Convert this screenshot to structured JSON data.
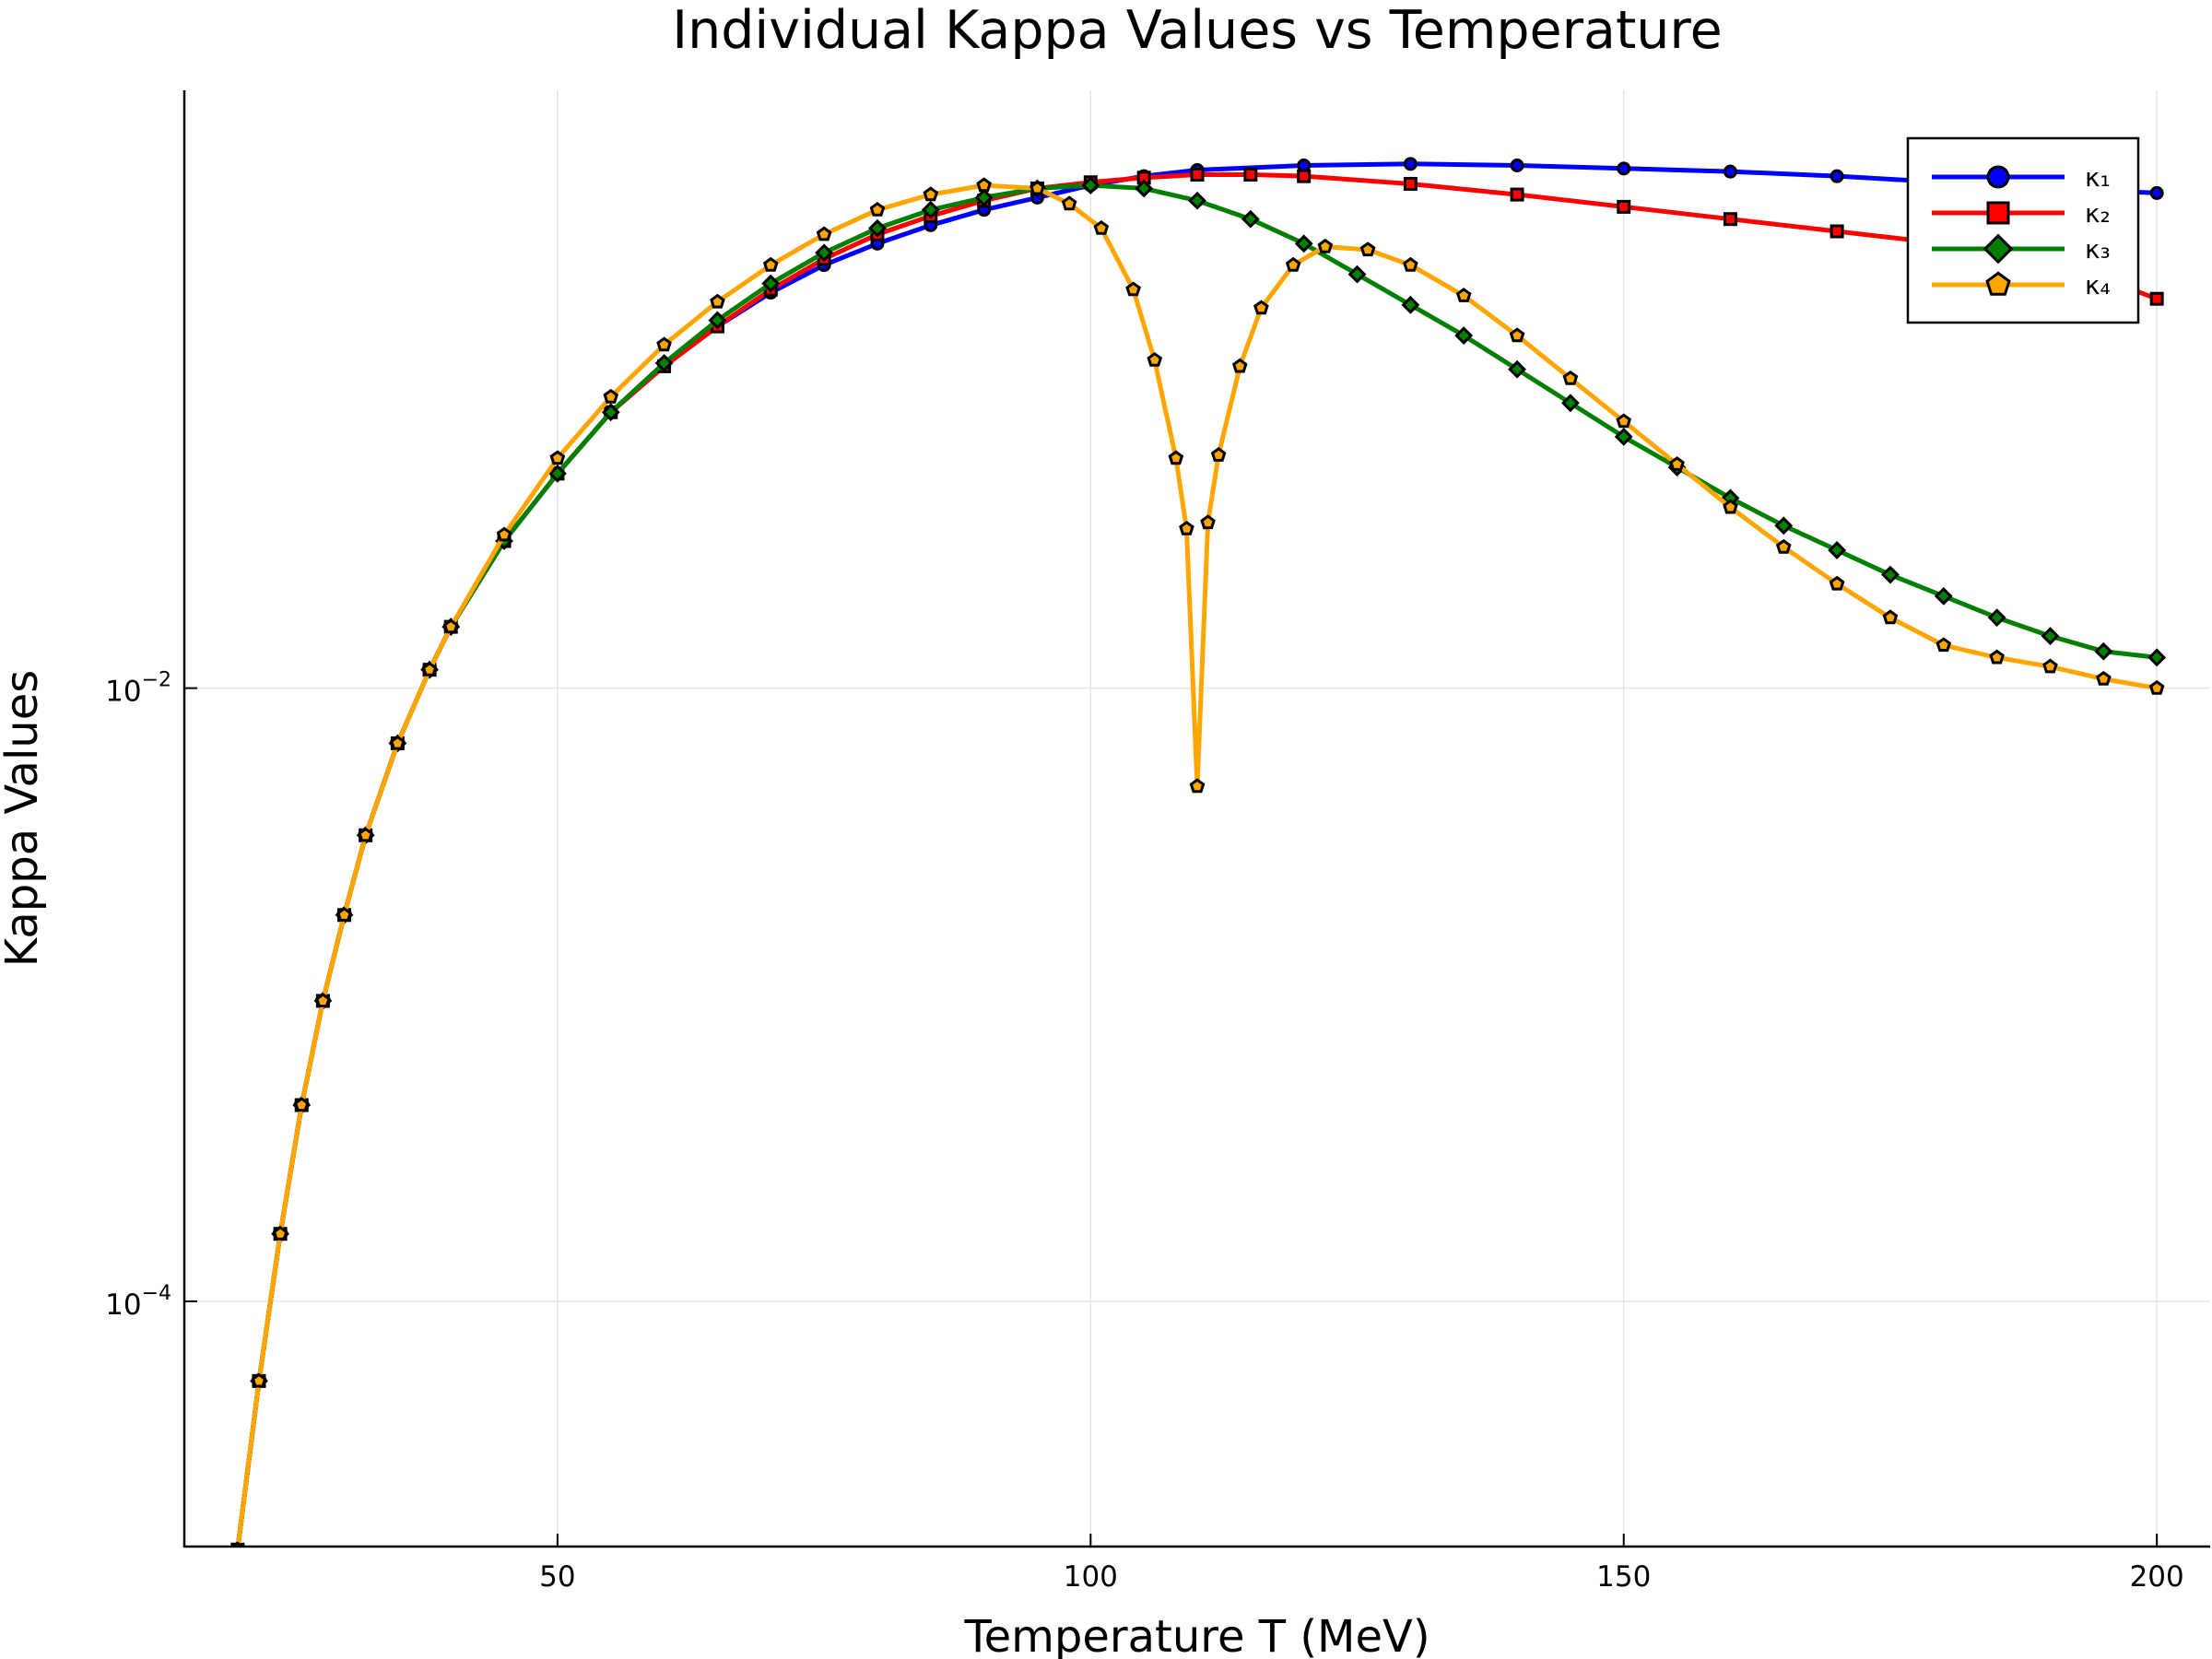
{
  "chart_data": {
    "type": "line",
    "title": "Individual Kappa Values vs Temperature",
    "xlabel": "Temperature T (MeV)",
    "ylabel": "Kappa Values",
    "xlim": [
      15,
      205
    ],
    "ylim_log10": [
      -4.8,
      -0.05
    ],
    "y_scale": "log",
    "grid": true,
    "legend_position": "top-right",
    "x_ticks": [
      50,
      100,
      150,
      200
    ],
    "y_ticks": [
      {
        "base": "10",
        "exponent": "−2",
        "log10": -2
      },
      {
        "base": "10",
        "exponent": "−4",
        "log10": -4
      }
    ],
    "series": [
      {
        "name": "κ₁",
        "color": "#0000ff",
        "marker": "circle",
        "points": [
          [
            20,
            -4.81
          ],
          [
            22,
            -4.26
          ],
          [
            24,
            -3.78
          ],
          [
            26,
            -3.36
          ],
          [
            28,
            -3.02
          ],
          [
            30,
            -2.74
          ],
          [
            32,
            -2.48
          ],
          [
            35,
            -2.18
          ],
          [
            38,
            -1.94
          ],
          [
            40,
            -1.8
          ],
          [
            45,
            -1.52
          ],
          [
            50,
            -1.3
          ],
          [
            55,
            -1.1
          ],
          [
            60,
            -0.95
          ],
          [
            65,
            -0.82
          ],
          [
            70,
            -0.71
          ],
          [
            75,
            -0.62
          ],
          [
            80,
            -0.55
          ],
          [
            85,
            -0.49
          ],
          [
            90,
            -0.44
          ],
          [
            95,
            -0.4
          ],
          [
            100,
            -0.36
          ],
          [
            105,
            -0.33
          ],
          [
            110,
            -0.31
          ],
          [
            120,
            -0.295
          ],
          [
            130,
            -0.29
          ],
          [
            140,
            -0.295
          ],
          [
            150,
            -0.305
          ],
          [
            160,
            -0.315
          ],
          [
            170,
            -0.33
          ],
          [
            180,
            -0.35
          ],
          [
            190,
            -0.37
          ],
          [
            200,
            -0.385
          ]
        ]
      },
      {
        "name": "κ₂",
        "color": "#ff0000",
        "marker": "square",
        "points": [
          [
            20,
            -4.81
          ],
          [
            22,
            -4.26
          ],
          [
            24,
            -3.78
          ],
          [
            26,
            -3.36
          ],
          [
            28,
            -3.02
          ],
          [
            30,
            -2.74
          ],
          [
            32,
            -2.48
          ],
          [
            35,
            -2.18
          ],
          [
            38,
            -1.94
          ],
          [
            40,
            -1.8
          ],
          [
            45,
            -1.52
          ],
          [
            50,
            -1.3
          ],
          [
            55,
            -1.1
          ],
          [
            60,
            -0.95
          ],
          [
            65,
            -0.82
          ],
          [
            70,
            -0.7
          ],
          [
            75,
            -0.6
          ],
          [
            80,
            -0.52
          ],
          [
            85,
            -0.46
          ],
          [
            90,
            -0.41
          ],
          [
            95,
            -0.37
          ],
          [
            100,
            -0.35
          ],
          [
            105,
            -0.335
          ],
          [
            110,
            -0.325
          ],
          [
            115,
            -0.325
          ],
          [
            120,
            -0.33
          ],
          [
            130,
            -0.355
          ],
          [
            140,
            -0.39
          ],
          [
            150,
            -0.43
          ],
          [
            160,
            -0.47
          ],
          [
            170,
            -0.51
          ],
          [
            180,
            -0.55
          ],
          [
            190,
            -0.6
          ],
          [
            200,
            -0.73
          ]
        ]
      },
      {
        "name": "κ₃",
        "color": "#008000",
        "marker": "diamond",
        "points": [
          [
            20,
            -4.81
          ],
          [
            22,
            -4.26
          ],
          [
            24,
            -3.78
          ],
          [
            26,
            -3.36
          ],
          [
            28,
            -3.02
          ],
          [
            30,
            -2.74
          ],
          [
            32,
            -2.48
          ],
          [
            35,
            -2.18
          ],
          [
            38,
            -1.94
          ],
          [
            40,
            -1.8
          ],
          [
            45,
            -1.52
          ],
          [
            50,
            -1.3
          ],
          [
            55,
            -1.1
          ],
          [
            60,
            -0.94
          ],
          [
            65,
            -0.8
          ],
          [
            70,
            -0.68
          ],
          [
            75,
            -0.58
          ],
          [
            80,
            -0.5
          ],
          [
            85,
            -0.44
          ],
          [
            90,
            -0.4
          ],
          [
            95,
            -0.37
          ],
          [
            100,
            -0.36
          ],
          [
            105,
            -0.37
          ],
          [
            110,
            -0.41
          ],
          [
            115,
            -0.47
          ],
          [
            120,
            -0.55
          ],
          [
            125,
            -0.65
          ],
          [
            130,
            -0.75
          ],
          [
            135,
            -0.85
          ],
          [
            140,
            -0.96
          ],
          [
            145,
            -1.07
          ],
          [
            150,
            -1.18
          ],
          [
            155,
            -1.28
          ],
          [
            160,
            -1.38
          ],
          [
            165,
            -1.47
          ],
          [
            170,
            -1.55
          ],
          [
            175,
            -1.63
          ],
          [
            180,
            -1.7
          ],
          [
            185,
            -1.77
          ],
          [
            190,
            -1.83
          ],
          [
            195,
            -1.88
          ],
          [
            200,
            -1.9
          ]
        ]
      },
      {
        "name": "κ₄",
        "color": "#ffa500",
        "marker": "pentagon",
        "points": [
          [
            20,
            -4.81
          ],
          [
            22,
            -4.26
          ],
          [
            24,
            -3.78
          ],
          [
            26,
            -3.36
          ],
          [
            28,
            -3.02
          ],
          [
            30,
            -2.74
          ],
          [
            32,
            -2.48
          ],
          [
            35,
            -2.18
          ],
          [
            38,
            -1.94
          ],
          [
            40,
            -1.8
          ],
          [
            45,
            -1.5
          ],
          [
            50,
            -1.25
          ],
          [
            55,
            -1.05
          ],
          [
            60,
            -0.88
          ],
          [
            65,
            -0.74
          ],
          [
            70,
            -0.62
          ],
          [
            75,
            -0.52
          ],
          [
            80,
            -0.44
          ],
          [
            85,
            -0.39
          ],
          [
            90,
            -0.36
          ],
          [
            95,
            -0.37
          ],
          [
            98,
            -0.42
          ],
          [
            101,
            -0.5
          ],
          [
            104,
            -0.7
          ],
          [
            106,
            -0.93
          ],
          [
            108,
            -1.25
          ],
          [
            109,
            -1.48
          ],
          [
            110,
            -2.32
          ],
          [
            111,
            -1.46
          ],
          [
            112,
            -1.24
          ],
          [
            114,
            -0.95
          ],
          [
            116,
            -0.76
          ],
          [
            119,
            -0.62
          ],
          [
            122,
            -0.56
          ],
          [
            126,
            -0.57
          ],
          [
            130,
            -0.62
          ],
          [
            135,
            -0.72
          ],
          [
            140,
            -0.85
          ],
          [
            145,
            -0.99
          ],
          [
            150,
            -1.13
          ],
          [
            155,
            -1.27
          ],
          [
            160,
            -1.41
          ],
          [
            165,
            -1.54
          ],
          [
            170,
            -1.66
          ],
          [
            175,
            -1.77
          ],
          [
            180,
            -1.86
          ],
          [
            185,
            -1.9
          ],
          [
            190,
            -1.93
          ],
          [
            195,
            -1.97
          ],
          [
            200,
            -2.0
          ]
        ]
      }
    ]
  }
}
